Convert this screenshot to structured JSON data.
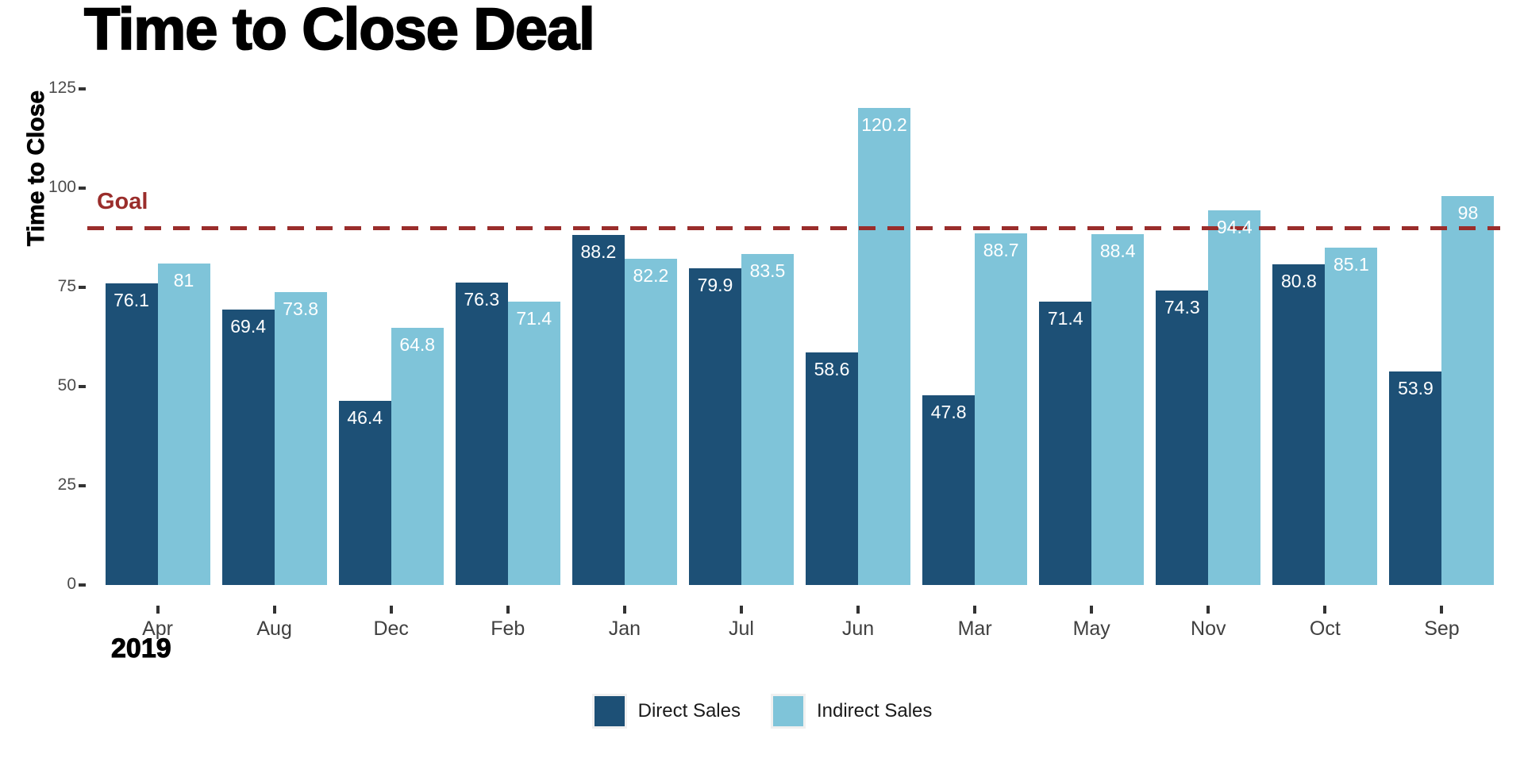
{
  "chart_data": {
    "type": "bar",
    "title": "Time to Close Deal",
    "ylabel": "Time to Close",
    "x_axis_year": "2019",
    "categories": [
      "Apr",
      "Aug",
      "Dec",
      "Feb",
      "Jan",
      "Jul",
      "Jun",
      "Mar",
      "May",
      "Nov",
      "Oct",
      "Sep"
    ],
    "series": [
      {
        "name": "Direct Sales",
        "color": "#1d5076",
        "values": [
          76.1,
          69.4,
          46.4,
          76.3,
          88.2,
          79.9,
          58.6,
          47.8,
          71.4,
          74.3,
          80.8,
          53.9
        ]
      },
      {
        "name": "Indirect Sales",
        "color": "#7fc4d9",
        "values": [
          81,
          73.8,
          64.8,
          71.4,
          82.2,
          83.5,
          120.2,
          88.7,
          88.4,
          94.4,
          85.1,
          98
        ]
      }
    ],
    "goal_line": {
      "label": "Goal",
      "value": 90,
      "color": "#9a2d2b",
      "style": "dashed"
    },
    "y_ticks": [
      0,
      25,
      50,
      75,
      100,
      125
    ],
    "ylim": [
      0,
      130
    ],
    "grid": false,
    "legend_position": "bottom",
    "bar_label_color": "#ffffff"
  }
}
